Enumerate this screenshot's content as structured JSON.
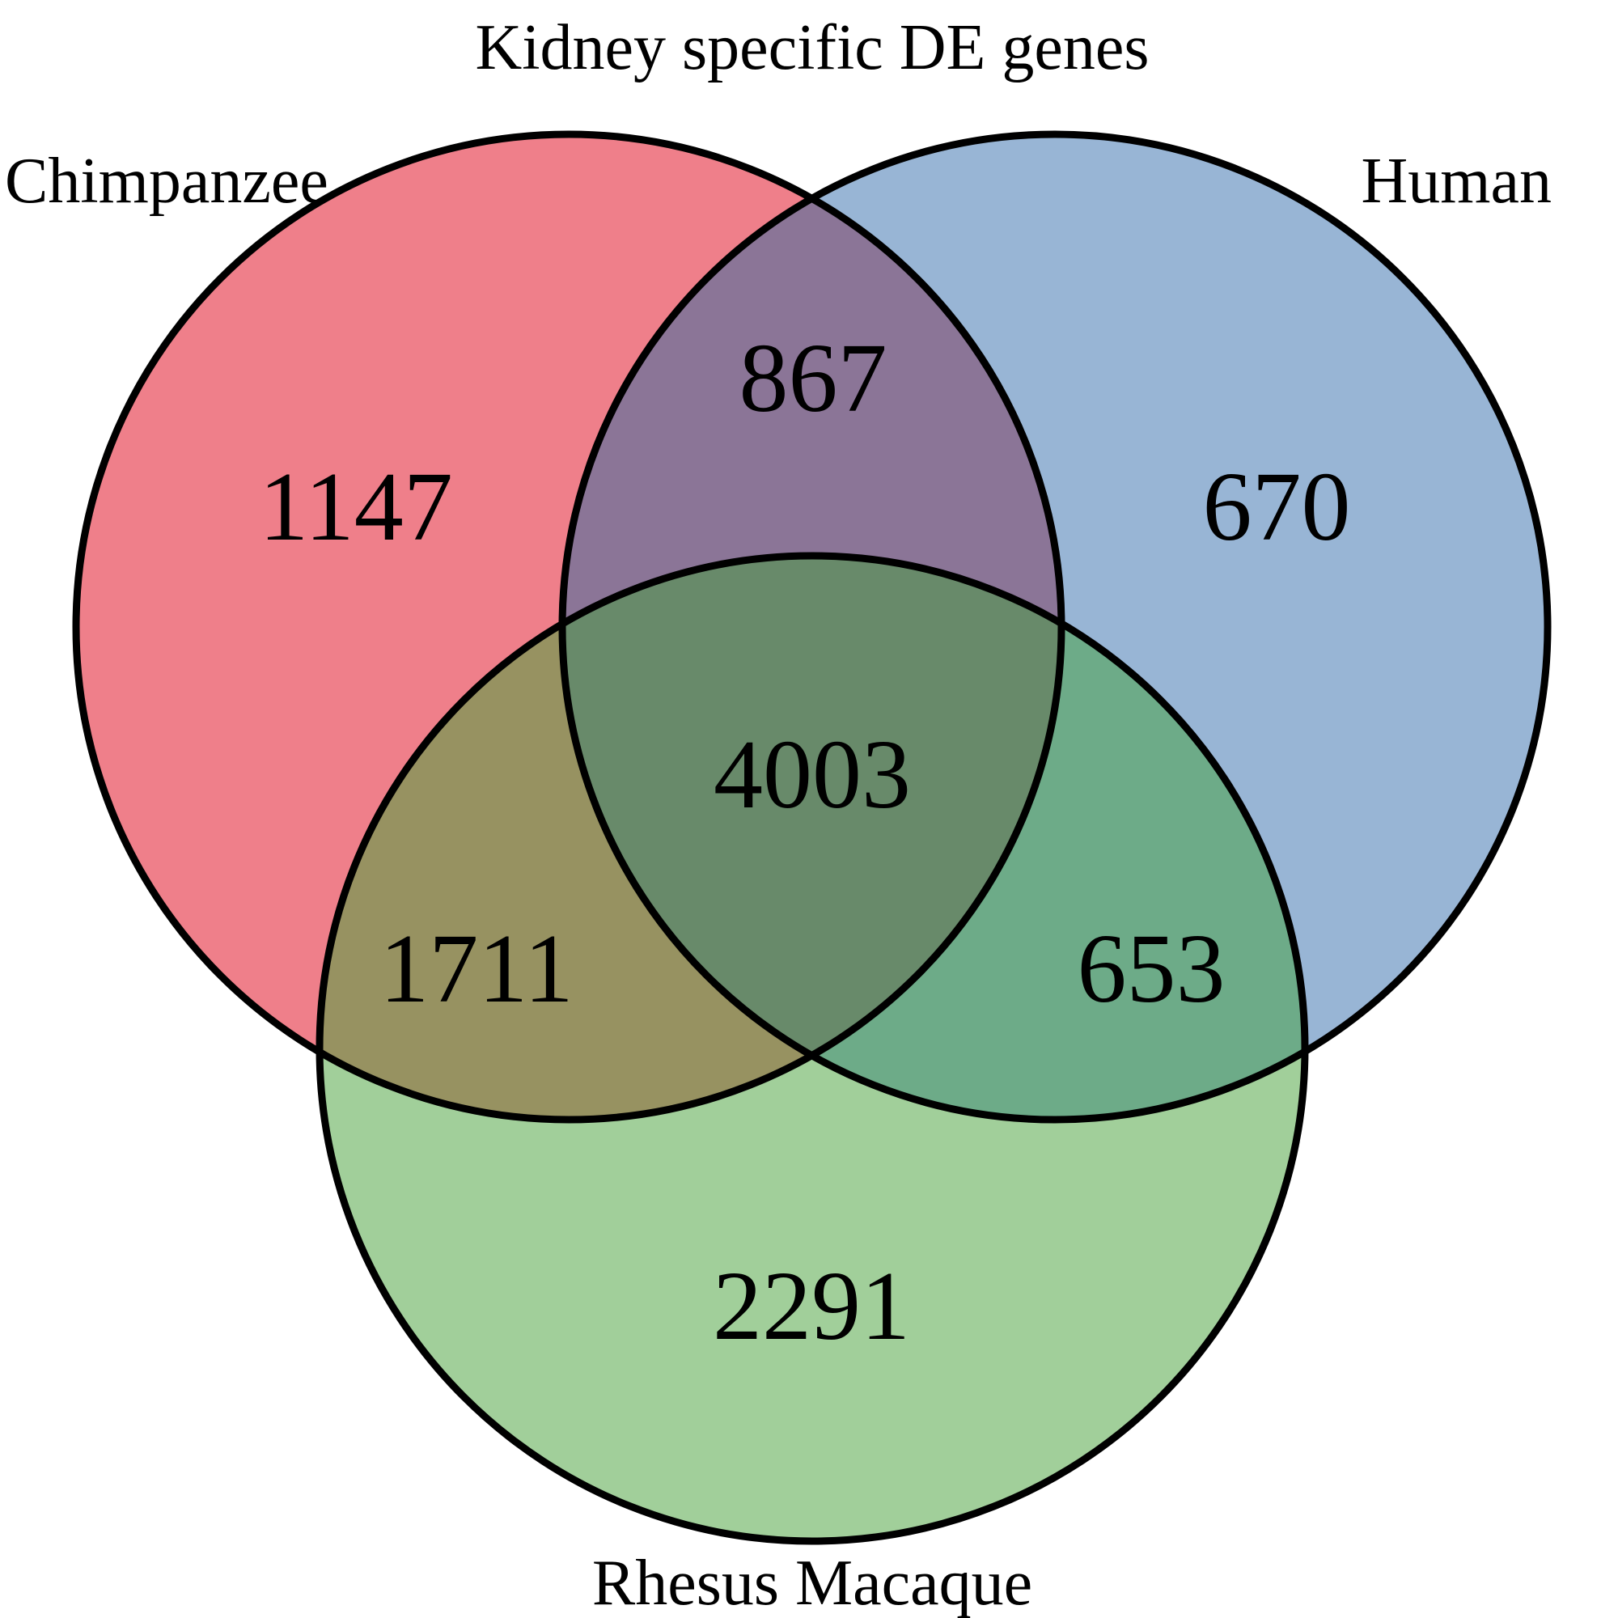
{
  "title": "Kidney specific DE genes",
  "sets": {
    "chimpanzee": {
      "label": "Chimpanzee",
      "color": "#ef7f8a"
    },
    "human": {
      "label": "Human",
      "color": "#98b5d5"
    },
    "rhesus": {
      "label": "Rhesus Macaque",
      "color": "#a1cf9a"
    }
  },
  "regions": {
    "chimpanzee_only": {
      "count": "1147",
      "color": "#ef7f8a"
    },
    "human_only": {
      "count": "670",
      "color": "#98b5d5"
    },
    "rhesus_only": {
      "count": "2291",
      "color": "#a1cf9a"
    },
    "chimpanzee_human": {
      "count": "867",
      "color": "#8b7597"
    },
    "chimpanzee_rhesus": {
      "count": "1711",
      "color": "#979261"
    },
    "human_rhesus": {
      "count": "653",
      "color": "#6dab88"
    },
    "all_three": {
      "count": "4003",
      "color": "#688a6a"
    }
  }
}
